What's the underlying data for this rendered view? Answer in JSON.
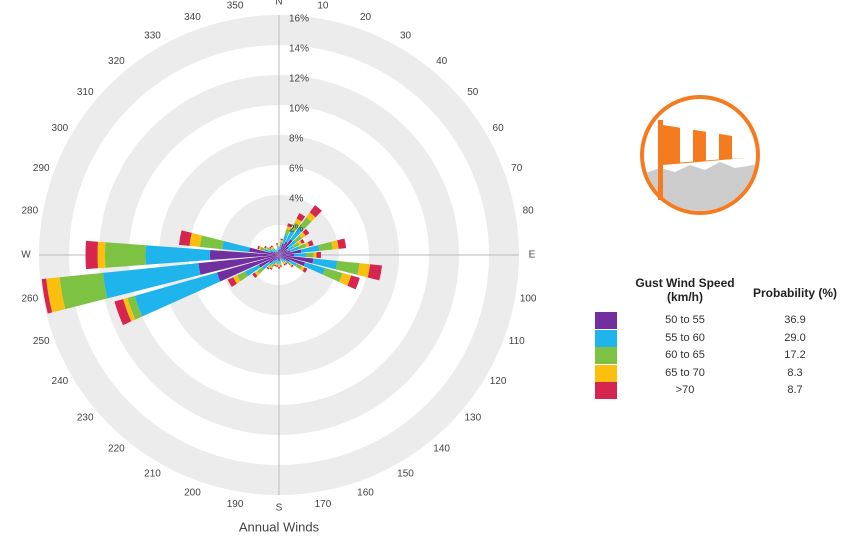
{
  "chart_data": {
    "type": "windrose",
    "title": "Annual Winds",
    "categories": [
      "N",
      "10",
      "20",
      "30",
      "40",
      "50",
      "60",
      "70",
      "80",
      "E",
      "100",
      "110",
      "120",
      "130",
      "140",
      "150",
      "160",
      "170",
      "S",
      "190",
      "200",
      "210",
      "220",
      "230",
      "240",
      "250",
      "260",
      "W",
      "280",
      "290",
      "300",
      "310",
      "320",
      "330",
      "340",
      "350"
    ],
    "rlim": [
      0,
      16
    ],
    "rticks": [
      {
        "value": 2,
        "label": "2%"
      },
      {
        "value": 4,
        "label": "4%"
      },
      {
        "value": 6,
        "label": "6%"
      },
      {
        "value": 8,
        "label": "8%"
      },
      {
        "value": 10,
        "label": "10%"
      },
      {
        "value": 12,
        "label": "12%"
      },
      {
        "value": 14,
        "label": "14%"
      },
      {
        "value": 16,
        "label": "16%"
      }
    ],
    "legend_headers": [
      "Gust Wind Speed (km/h)",
      "Probability (%)"
    ],
    "series": [
      {
        "name": "50 to 55",
        "color": "#7030a0",
        "probability": "36.9",
        "values": [
          0.3,
          0.4,
          0.8,
          1.0,
          1.3,
          0.8,
          0.6,
          0.8,
          1.5,
          1.0,
          2.3,
          1.8,
          0.8,
          0.5,
          0.3,
          0.3,
          0.2,
          0.3,
          0.4,
          0.3,
          0.3,
          0.4,
          0.5,
          0.8,
          1.5,
          4.3,
          5.4,
          4.6,
          2.0,
          0.6,
          0.4,
          0.3,
          0.3,
          0.2,
          0.2,
          0.3
        ]
      },
      {
        "name": "55 to 60",
        "color": "#1fb5ec",
        "probability": "29.0",
        "values": [
          0.2,
          0.3,
          0.6,
          0.8,
          1.0,
          0.6,
          0.5,
          0.6,
          1.2,
          0.8,
          1.6,
          1.4,
          0.5,
          0.3,
          0.2,
          0.2,
          0.1,
          0.2,
          0.2,
          0.2,
          0.2,
          0.3,
          0.3,
          0.6,
          1.0,
          5.7,
          6.4,
          4.3,
          1.8,
          0.4,
          0.3,
          0.2,
          0.2,
          0.1,
          0.1,
          0.2
        ]
      },
      {
        "name": "60 to 65",
        "color": "#7dc242",
        "probability": "17.2",
        "values": [
          0.1,
          0.2,
          0.4,
          0.6,
          0.8,
          0.5,
          0.4,
          0.5,
          0.9,
          0.5,
          1.5,
          1.2,
          0.4,
          0.2,
          0.1,
          0.1,
          0.1,
          0.1,
          0.1,
          0.1,
          0.1,
          0.2,
          0.2,
          0.4,
          0.6,
          0.5,
          2.9,
          2.7,
          1.5,
          0.3,
          0.2,
          0.1,
          0.1,
          0.1,
          0.1,
          0.1
        ]
      },
      {
        "name": "65 to 70",
        "color": "#fbbf0f",
        "probability": "8.3",
        "values": [
          0,
          0.1,
          0.2,
          0.3,
          0.4,
          0.3,
          0.2,
          0.2,
          0.4,
          0.2,
          0.7,
          0.6,
          0.2,
          0.1,
          0.1,
          0.1,
          0,
          0.1,
          0.1,
          0.1,
          0.1,
          0.1,
          0.1,
          0.2,
          0.3,
          0.3,
          0.9,
          0.5,
          0.7,
          0.1,
          0.1,
          0.1,
          0.1,
          0,
          0,
          0.1
        ]
      },
      {
        "name": ">70",
        "color": "#d6254f",
        "probability": "8.7",
        "values": [
          0,
          0.1,
          0.2,
          0.4,
          0.6,
          0.3,
          0.2,
          0.3,
          0.5,
          0.3,
          0.8,
          0.6,
          0.2,
          0.1,
          0.1,
          0.1,
          0,
          0.1,
          0.1,
          0.1,
          0.1,
          0.1,
          0.1,
          0.2,
          0.4,
          0.6,
          0.3,
          0.8,
          0.7,
          0.1,
          0.1,
          0.1,
          0.1,
          0,
          0,
          0.1
        ]
      }
    ]
  }
}
